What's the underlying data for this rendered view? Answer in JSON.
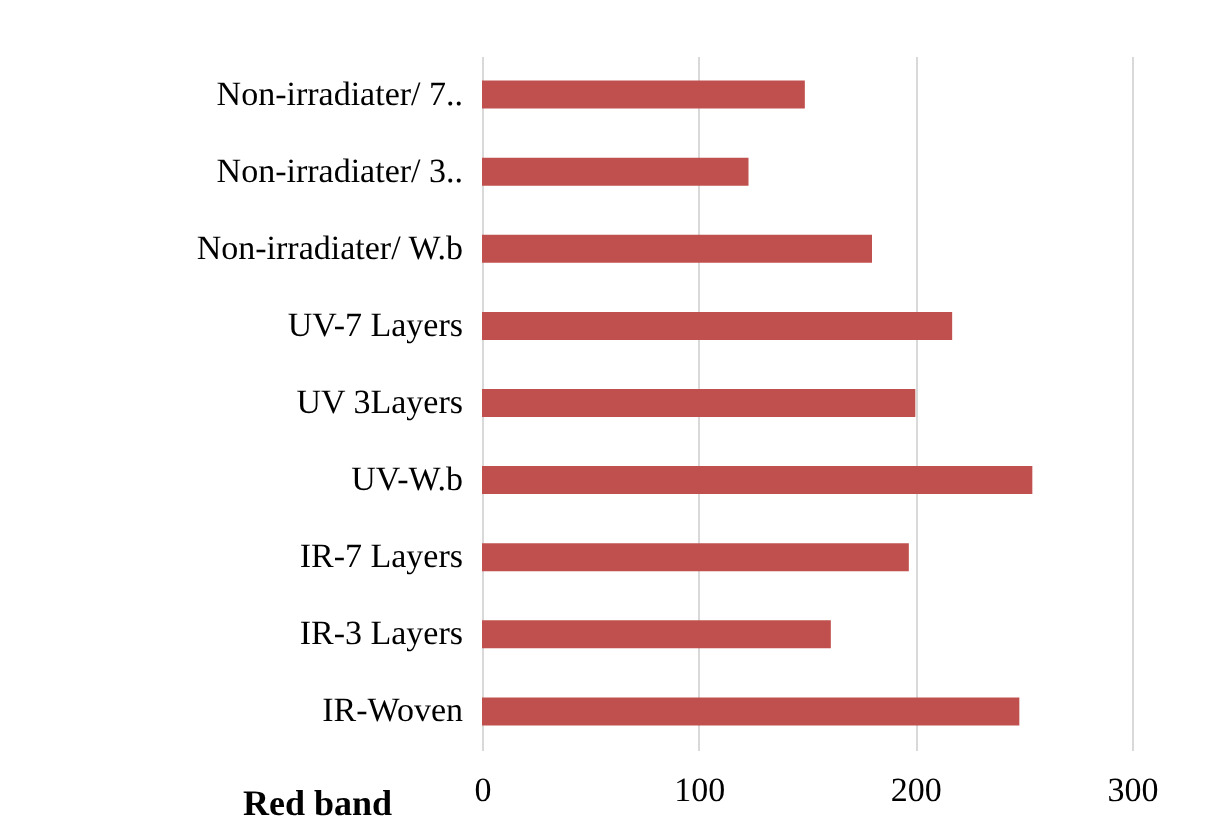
{
  "chart_data": {
    "type": "bar",
    "orientation": "horizontal",
    "xlabel": "Red band",
    "categories": [
      "Non-irradiater/ 7..",
      "Non-irradiater/ 3..",
      "Non-irradiater/ W.b",
      "UV-7 Layers",
      "UV 3Layers",
      "UV-W.b",
      "IR-7 Layers",
      "IR-3 Layers",
      "IR-Woven"
    ],
    "values": [
      149,
      123,
      180,
      217,
      200,
      254,
      197,
      161,
      248
    ],
    "color": "#c0504d",
    "xlim": [
      0,
      300
    ],
    "xticks": [
      0,
      100,
      200,
      300
    ],
    "grid": "x"
  }
}
